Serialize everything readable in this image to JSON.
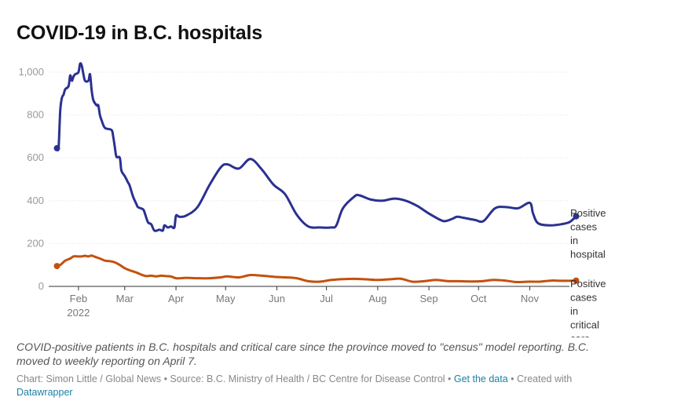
{
  "title": "COVID-19 in B.C. hospitals",
  "caption": "COVID-positive patients in B.C. hospitals and critical care since the province moved to \"census\" model reporting. B.C. moved to weekly reporting on April 7.",
  "notes": {
    "prefix": "Chart: Simon Little / Global News • Source: B.C. Ministry of Health / BC Centre for Disease Control • ",
    "get_data": "Get the data",
    "created_with": " • Created with ",
    "datawrapper": "Datawrapper"
  },
  "chart_data": {
    "type": "line",
    "ylim": [
      0,
      1000
    ],
    "y_ticks": [
      0,
      200,
      400,
      600,
      800,
      1000
    ],
    "y_tick_labels": [
      "0",
      "200",
      "400",
      "600",
      "800",
      "1,000"
    ],
    "x_tick_labels": [
      {
        "date": "2022-02-01",
        "label": "Feb",
        "sub": "2022"
      },
      {
        "date": "2022-03-01",
        "label": "Mar",
        "sub": ""
      },
      {
        "date": "2022-04-01",
        "label": "Apr",
        "sub": ""
      },
      {
        "date": "2022-05-01",
        "label": "May",
        "sub": ""
      },
      {
        "date": "2022-06-01",
        "label": "Jun",
        "sub": ""
      },
      {
        "date": "2022-07-01",
        "label": "Jul",
        "sub": ""
      },
      {
        "date": "2022-08-01",
        "label": "Aug",
        "sub": ""
      },
      {
        "date": "2022-09-01",
        "label": "Sep",
        "sub": ""
      },
      {
        "date": "2022-10-01",
        "label": "Oct",
        "sub": ""
      },
      {
        "date": "2022-11-01",
        "label": "Nov",
        "sub": ""
      }
    ],
    "xlim": [
      "2022-01-14",
      "2022-11-25"
    ],
    "grid": true,
    "series": [
      {
        "name": "Positive cases in hospital",
        "label_lines": [
          "Positive",
          "cases",
          "in",
          "hospital"
        ],
        "color": "#2b3190",
        "points": [
          [
            "2022-01-19",
            645
          ],
          [
            "2022-01-20",
            650
          ],
          [
            "2022-01-21",
            820
          ],
          [
            "2022-01-22",
            880
          ],
          [
            "2022-01-23",
            895
          ],
          [
            "2022-01-24",
            920
          ],
          [
            "2022-01-26",
            935
          ],
          [
            "2022-01-27",
            985
          ],
          [
            "2022-01-28",
            960
          ],
          [
            "2022-01-29",
            980
          ],
          [
            "2022-01-30",
            990
          ],
          [
            "2022-02-01",
            1000
          ],
          [
            "2022-02-02",
            1040
          ],
          [
            "2022-02-03",
            1030
          ],
          [
            "2022-02-04",
            990
          ],
          [
            "2022-02-05",
            960
          ],
          [
            "2022-02-07",
            960
          ],
          [
            "2022-02-08",
            990
          ],
          [
            "2022-02-09",
            915
          ],
          [
            "2022-02-10",
            870
          ],
          [
            "2022-02-12",
            845
          ],
          [
            "2022-02-13",
            845
          ],
          [
            "2022-02-14",
            800
          ],
          [
            "2022-02-15",
            775
          ],
          [
            "2022-02-17",
            740
          ],
          [
            "2022-02-21",
            730
          ],
          [
            "2022-02-22",
            700
          ],
          [
            "2022-02-23",
            650
          ],
          [
            "2022-02-24",
            605
          ],
          [
            "2022-02-26",
            600
          ],
          [
            "2022-02-27",
            540
          ],
          [
            "2022-03-01",
            515
          ],
          [
            "2022-03-03",
            485
          ],
          [
            "2022-03-04",
            470
          ],
          [
            "2022-03-06",
            420
          ],
          [
            "2022-03-08",
            385
          ],
          [
            "2022-03-09",
            370
          ],
          [
            "2022-03-12",
            360
          ],
          [
            "2022-03-13",
            345
          ],
          [
            "2022-03-15",
            300
          ],
          [
            "2022-03-17",
            290
          ],
          [
            "2022-03-19",
            260
          ],
          [
            "2022-03-22",
            265
          ],
          [
            "2022-03-24",
            260
          ],
          [
            "2022-03-25",
            285
          ],
          [
            "2022-03-27",
            275
          ],
          [
            "2022-03-29",
            280
          ],
          [
            "2022-03-31",
            275
          ],
          [
            "2022-04-01",
            330
          ],
          [
            "2022-04-03",
            325
          ],
          [
            "2022-04-07",
            330
          ],
          [
            "2022-04-14",
            370
          ],
          [
            "2022-04-21",
            470
          ],
          [
            "2022-04-28",
            555
          ],
          [
            "2022-05-02",
            570
          ],
          [
            "2022-05-09",
            550
          ],
          [
            "2022-05-16",
            595
          ],
          [
            "2022-05-23",
            545
          ],
          [
            "2022-05-30",
            475
          ],
          [
            "2022-06-06",
            430
          ],
          [
            "2022-06-13",
            335
          ],
          [
            "2022-06-20",
            280
          ],
          [
            "2022-06-27",
            275
          ],
          [
            "2022-07-04",
            275
          ],
          [
            "2022-07-07",
            285
          ],
          [
            "2022-07-11",
            365
          ],
          [
            "2022-07-18",
            420
          ],
          [
            "2022-07-21",
            425
          ],
          [
            "2022-07-28",
            405
          ],
          [
            "2022-08-04",
            400
          ],
          [
            "2022-08-11",
            410
          ],
          [
            "2022-08-18",
            400
          ],
          [
            "2022-08-25",
            375
          ],
          [
            "2022-09-01",
            340
          ],
          [
            "2022-09-08",
            310
          ],
          [
            "2022-09-11",
            305
          ],
          [
            "2022-09-15",
            315
          ],
          [
            "2022-09-18",
            325
          ],
          [
            "2022-09-22",
            320
          ],
          [
            "2022-09-29",
            310
          ],
          [
            "2022-10-04",
            305
          ],
          [
            "2022-10-11",
            365
          ],
          [
            "2022-10-18",
            370
          ],
          [
            "2022-10-25",
            365
          ],
          [
            "2022-11-01",
            390
          ],
          [
            "2022-11-03",
            340
          ],
          [
            "2022-11-06",
            295
          ],
          [
            "2022-11-13",
            285
          ],
          [
            "2022-11-20",
            290
          ],
          [
            "2022-11-25",
            300
          ],
          [
            "2022-11-29",
            327
          ]
        ]
      },
      {
        "name": "Positive cases in critical care",
        "label_lines": [
          "Positive",
          "cases",
          "in",
          "critical",
          "care"
        ],
        "color": "#c4510d",
        "points": [
          [
            "2022-01-19",
            95
          ],
          [
            "2022-01-21",
            100
          ],
          [
            "2022-01-24",
            120
          ],
          [
            "2022-01-27",
            130
          ],
          [
            "2022-01-29",
            140
          ],
          [
            "2022-01-31",
            140
          ],
          [
            "2022-02-03",
            140
          ],
          [
            "2022-02-05",
            143
          ],
          [
            "2022-02-07",
            140
          ],
          [
            "2022-02-09",
            144
          ],
          [
            "2022-02-11",
            138
          ],
          [
            "2022-02-14",
            130
          ],
          [
            "2022-02-17",
            120
          ],
          [
            "2022-02-20",
            118
          ],
          [
            "2022-02-23",
            112
          ],
          [
            "2022-02-26",
            100
          ],
          [
            "2022-03-01",
            85
          ],
          [
            "2022-03-04",
            75
          ],
          [
            "2022-03-08",
            65
          ],
          [
            "2022-03-11",
            55
          ],
          [
            "2022-03-14",
            48
          ],
          [
            "2022-03-17",
            50
          ],
          [
            "2022-03-20",
            47
          ],
          [
            "2022-03-23",
            50
          ],
          [
            "2022-03-26",
            48
          ],
          [
            "2022-03-29",
            46
          ],
          [
            "2022-04-01",
            38
          ],
          [
            "2022-04-04",
            38
          ],
          [
            "2022-04-07",
            40
          ],
          [
            "2022-04-14",
            38
          ],
          [
            "2022-04-21",
            38
          ],
          [
            "2022-04-28",
            42
          ],
          [
            "2022-05-02",
            47
          ],
          [
            "2022-05-09",
            42
          ],
          [
            "2022-05-16",
            53
          ],
          [
            "2022-05-23",
            50
          ],
          [
            "2022-05-30",
            45
          ],
          [
            "2022-06-06",
            42
          ],
          [
            "2022-06-13",
            38
          ],
          [
            "2022-06-20",
            24
          ],
          [
            "2022-06-27",
            22
          ],
          [
            "2022-07-04",
            30
          ],
          [
            "2022-07-11",
            34
          ],
          [
            "2022-07-18",
            35
          ],
          [
            "2022-07-25",
            33
          ],
          [
            "2022-08-01",
            30
          ],
          [
            "2022-08-08",
            33
          ],
          [
            "2022-08-15",
            36
          ],
          [
            "2022-08-22",
            22
          ],
          [
            "2022-08-29",
            24
          ],
          [
            "2022-09-05",
            30
          ],
          [
            "2022-09-12",
            25
          ],
          [
            "2022-09-19",
            24
          ],
          [
            "2022-09-26",
            23
          ],
          [
            "2022-10-03",
            24
          ],
          [
            "2022-10-10",
            30
          ],
          [
            "2022-10-17",
            27
          ],
          [
            "2022-10-24",
            20
          ],
          [
            "2022-10-31",
            22
          ],
          [
            "2022-11-07",
            22
          ],
          [
            "2022-11-14",
            27
          ],
          [
            "2022-11-21",
            26
          ],
          [
            "2022-11-29",
            27
          ]
        ]
      }
    ]
  }
}
